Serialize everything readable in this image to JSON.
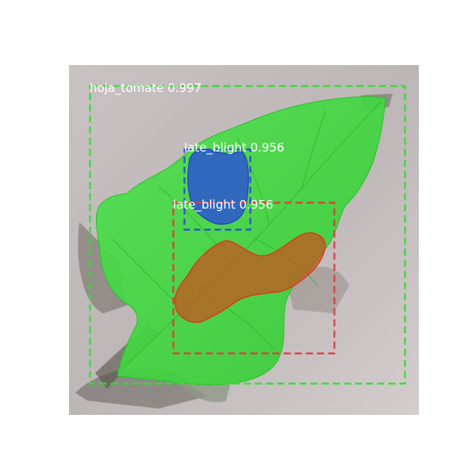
{
  "detections": [
    {
      "class_name": "hoja_tomate",
      "score": "0.997",
      "color": "#33dd33"
    },
    {
      "class_name": "late_blight",
      "score": "0.956",
      "color": "#2a4fd6"
    },
    {
      "class_name": "late_blight",
      "score": "0.956",
      "color": "#e23b3b"
    }
  ],
  "labels": {
    "leaf": "hoja_tomate 0.997",
    "blight_top": "late_blight 0.956",
    "blight_bottom": "late_blight 0.956"
  }
}
